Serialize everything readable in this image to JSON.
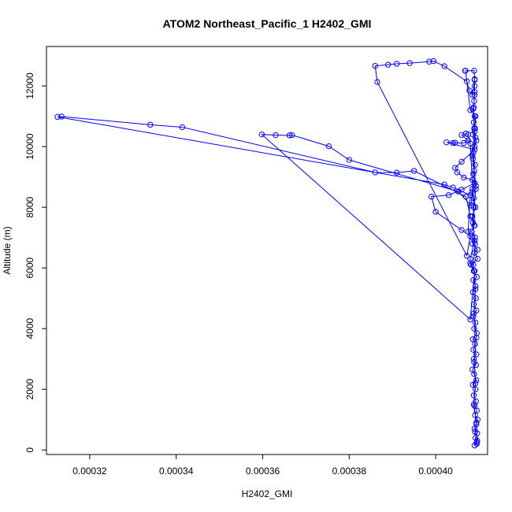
{
  "chart_data": {
    "type": "scatter",
    "title": "ATOM2 Northeast_Pacific_1 H2402_GMI",
    "xlabel": "H2402_GMI",
    "ylabel": "Altitude (m)",
    "xlim": [
      0.00031,
      0.000412
    ],
    "ylim": [
      -150,
      13300
    ],
    "x_ticks": [
      0.00032,
      0.00034,
      0.00036,
      0.00038,
      0.0004
    ],
    "x_tick_labels": [
      "0.00032",
      "0.00034",
      "0.00036",
      "0.00038",
      "0.00040"
    ],
    "y_ticks": [
      0,
      2000,
      4000,
      6000,
      8000,
      10000,
      12000
    ],
    "y_tick_labels": [
      "0",
      "2000",
      "4000",
      "6000",
      "8000",
      "10000",
      "12000"
    ],
    "grid": false,
    "color": "#0000ff",
    "series": [
      {
        "values": [
          [
            0.000409,
            150
          ],
          [
            0.0004095,
            250
          ],
          [
            0.0004092,
            400
          ],
          [
            0.0004096,
            550
          ],
          [
            0.000409,
            700
          ],
          [
            0.0004094,
            850
          ],
          [
            0.0004097,
            1000
          ],
          [
            0.0004091,
            1150
          ],
          [
            0.0004095,
            1300
          ],
          [
            0.000409,
            1450
          ],
          [
            0.0004093,
            1600
          ],
          [
            0.0004088,
            1800
          ],
          [
            0.0004092,
            2000
          ],
          [
            0.0004086,
            2150
          ],
          [
            0.0004094,
            2300
          ],
          [
            0.0004089,
            2500
          ],
          [
            0.0004085,
            2650
          ],
          [
            0.0004093,
            2800
          ],
          [
            0.0004088,
            3000
          ],
          [
            0.0004094,
            3150
          ],
          [
            0.0004087,
            3300
          ],
          [
            0.0004091,
            3500
          ],
          [
            0.0004086,
            3650
          ],
          [
            0.0004095,
            3850
          ],
          [
            0.0004089,
            4000
          ],
          [
            0.0004092,
            4200
          ],
          [
            0.0004087,
            4400
          ],
          [
            0.0004094,
            4600
          ],
          [
            0.0004088,
            4800
          ],
          [
            0.0004093,
            5000
          ],
          [
            0.0004086,
            5200
          ],
          [
            0.0004092,
            5400
          ],
          [
            0.0004087,
            5600
          ],
          [
            0.0004095,
            5700
          ],
          [
            0.0004088,
            5900
          ],
          [
            0.0004082,
            6100
          ],
          [
            0.0004097,
            6300
          ],
          [
            0.000409,
            6500
          ],
          [
            0.0004097,
            6600
          ],
          [
            0.0004085,
            6800
          ],
          [
            0.0004091,
            7000
          ],
          [
            0.0004083,
            7200
          ],
          [
            0.0004089,
            7400
          ],
          [
            0.0004085,
            7700
          ],
          [
            0.0004092,
            8000
          ],
          [
            0.0004088,
            8300
          ],
          [
            0.0004084,
            8500
          ],
          [
            0.000409,
            8800
          ],
          [
            0.0004087,
            9100
          ],
          [
            0.0004091,
            9400
          ],
          [
            0.0004085,
            9700
          ],
          [
            0.000409,
            10000
          ],
          [
            0.0004094,
            10200
          ],
          [
            0.0004086,
            10400
          ],
          [
            0.0004091,
            10600
          ],
          [
            0.0004088,
            10800
          ],
          [
            0.000409,
            11000
          ],
          [
            0.0004087,
            11250
          ],
          [
            0.0004089,
            11500
          ],
          [
            0.000409,
            11800
          ],
          [
            0.000409,
            12000
          ],
          [
            0.000409,
            12200
          ],
          [
            0.0004085,
            11700
          ],
          [
            0.0004078,
            11850
          ],
          [
            0.0004072,
            12150
          ],
          [
            0.000402,
            12650
          ],
          [
            0.0003995,
            12820
          ],
          [
            0.0003985,
            12800
          ],
          [
            0.000394,
            12750
          ],
          [
            0.000391,
            12730
          ],
          [
            0.000389,
            12700
          ],
          [
            0.000386,
            12660
          ],
          [
            0.0003865,
            12130
          ],
          [
            0.0004072,
            6400
          ],
          [
            0.000408,
            7050
          ],
          [
            0.0004075,
            7200
          ],
          [
            0.000408,
            8400
          ],
          [
            0.000404,
            8650
          ],
          [
            0.000402,
            8750
          ],
          [
            0.00031255,
            10980
          ],
          [
            0.0003135,
            10990
          ],
          [
            0.000334,
            10720
          ],
          [
            0.0003414,
            10640
          ],
          [
            0.000386,
            9150
          ],
          [
            0.000391,
            9140
          ],
          [
            0.000395,
            9200
          ],
          [
            0.000407,
            8350
          ],
          [
            0.000408,
            7700
          ],
          [
            0.000409,
            7400
          ],
          [
            0.000408,
            10100
          ],
          [
            0.0004075,
            10400
          ],
          [
            0.000407,
            10430
          ],
          [
            0.000406,
            10380
          ],
          [
            0.0004075,
            10200
          ],
          [
            0.0004065,
            10120
          ],
          [
            0.000404,
            10120
          ],
          [
            0.0004045,
            10125
          ],
          [
            0.0004025,
            10140
          ],
          [
            0.000409,
            9900
          ],
          [
            0.000406,
            9500
          ],
          [
            0.0004045,
            9300
          ],
          [
            0.000405,
            9150
          ],
          [
            0.0004065,
            8980
          ],
          [
            0.0004085,
            8900
          ],
          [
            0.000409,
            8800
          ],
          [
            0.000406,
            8580
          ],
          [
            0.000403,
            8400
          ],
          [
            0.000399,
            8350
          ],
          [
            0.0004,
            7850
          ],
          [
            0.000406,
            7250
          ],
          [
            0.0004085,
            7000
          ],
          [
            0.000409,
            6900
          ],
          [
            0.000408,
            6300
          ],
          [
            0.000408,
            6150
          ],
          [
            0.000409,
            5900
          ],
          [
            0.000408,
            4300
          ],
          [
            0.0003598,
            10400
          ],
          [
            0.000363,
            10380
          ],
          [
            0.0003662,
            10370
          ],
          [
            0.0003668,
            10380
          ],
          [
            0.0003753,
            10010
          ],
          [
            0.00038,
            9560
          ],
          [
            0.0004052,
            8520
          ],
          [
            0.0004082,
            8060
          ],
          [
            0.0004085,
            8600
          ],
          [
            0.0004093,
            8700
          ],
          [
            0.0004086,
            9600
          ],
          [
            0.000409,
            10500
          ],
          [
            0.0004092,
            11000
          ],
          [
            0.000408,
            11200
          ],
          [
            0.0004069,
            12500
          ],
          [
            0.0004068,
            12500
          ],
          [
            0.0004089,
            12500
          ],
          [
            0.000409,
            12220
          ],
          [
            0.000409,
            11700
          ],
          [
            0.0004088,
            11300
          ],
          [
            0.0004089,
            10600
          ],
          [
            0.0004092,
            10300
          ],
          [
            0.0004087,
            9800
          ],
          [
            0.0004089,
            9200
          ],
          [
            0.0004093,
            8600
          ],
          [
            0.0004088,
            8000
          ],
          [
            0.0004086,
            7500
          ],
          [
            0.0004091,
            6800
          ],
          [
            0.0004087,
            6100
          ],
          [
            0.0004092,
            5300
          ],
          [
            0.0004088,
            4500
          ],
          [
            0.0004094,
            3700
          ],
          [
            0.0004089,
            2900
          ],
          [
            0.0004092,
            2200
          ],
          [
            0.0004088,
            1500
          ],
          [
            0.0004094,
            900
          ],
          [
            0.0004091,
            600
          ],
          [
            0.0004096,
            300
          ],
          [
            0.0004095,
            200
          ]
        ]
      }
    ]
  }
}
